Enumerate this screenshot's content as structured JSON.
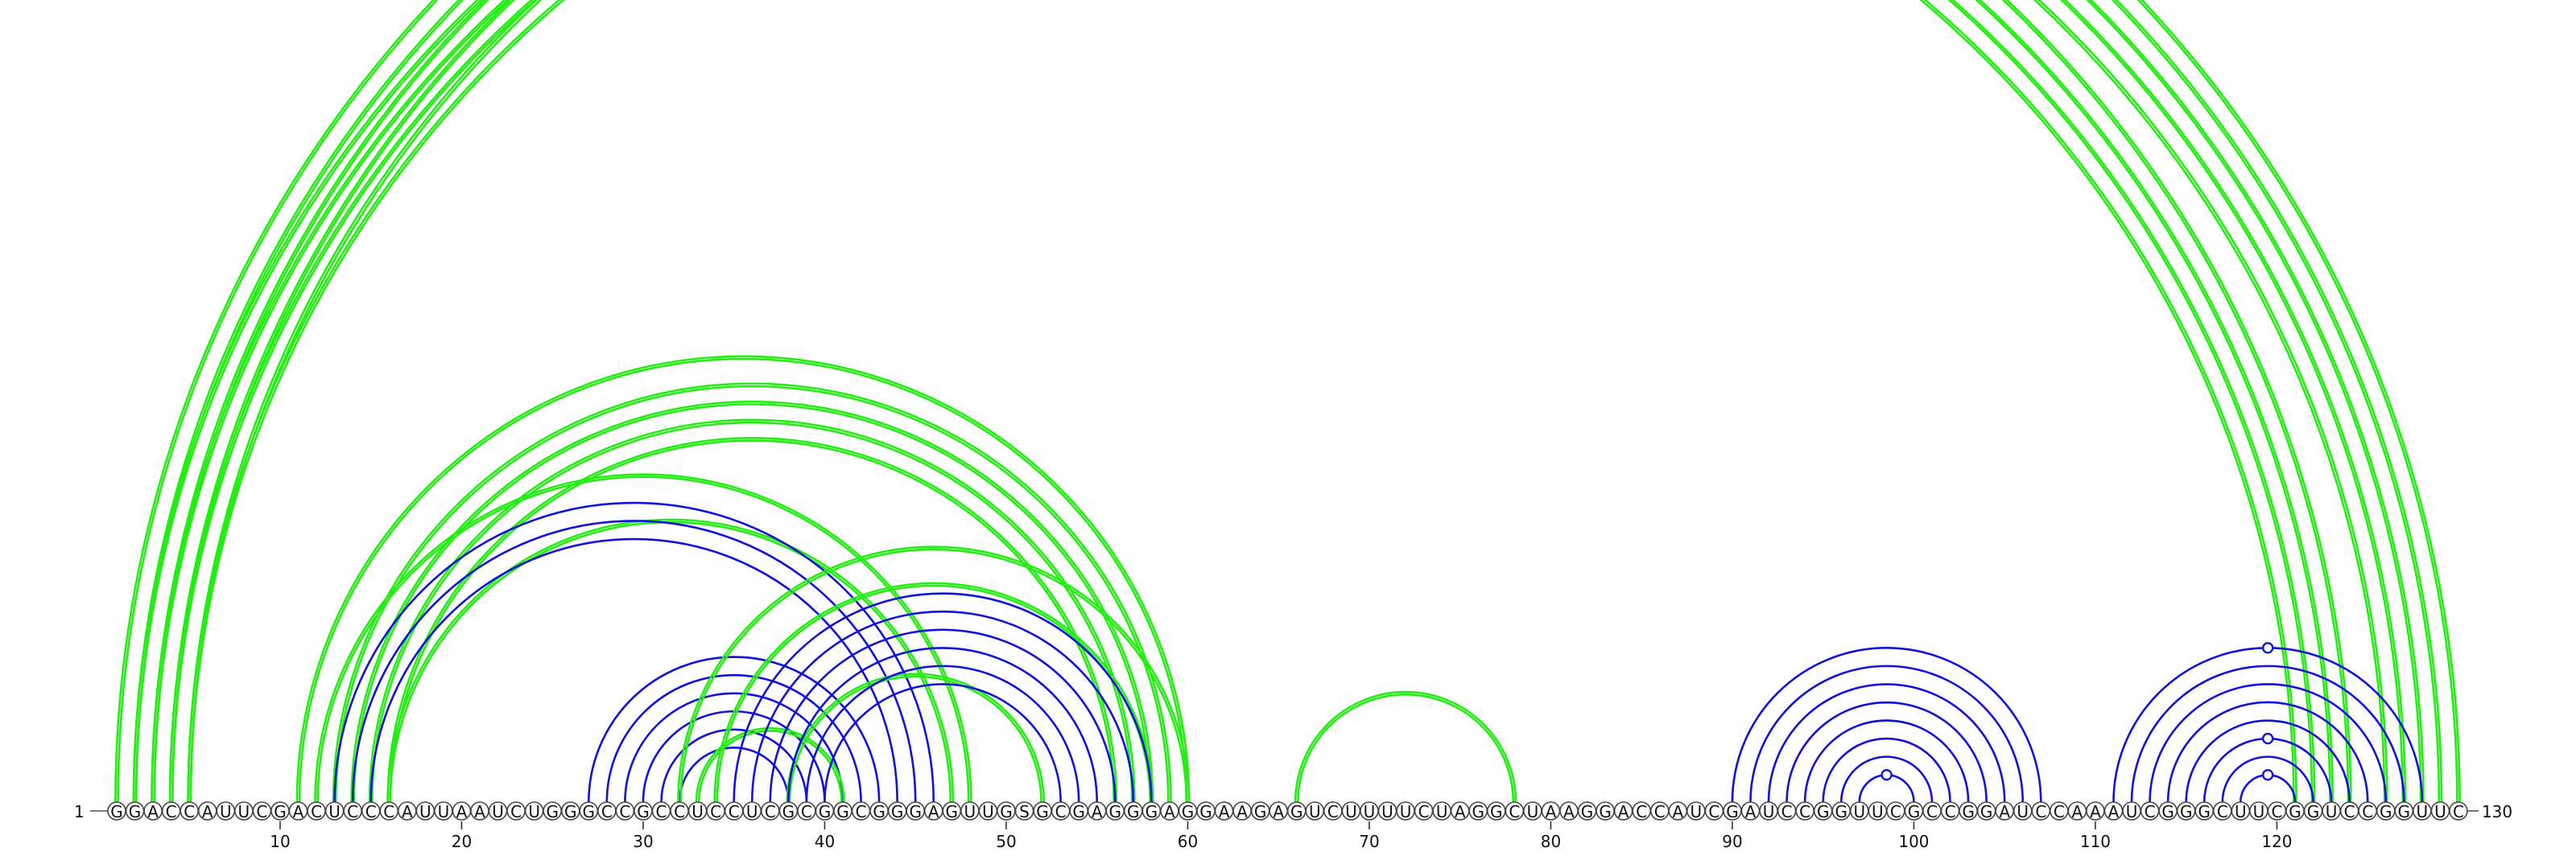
{
  "diagram": {
    "type": "rna-arc-diagram",
    "sequence": "GGACCAUUCGACUCCCAUUAAUCUGGGCCGCCUCCUCGCGGCGGGAGUUGSGCGAGGGAGGAAGAGUCUUUUCUAGGCUAAGGACCAUCGAUCCGGUUCGCCGGAUCCAAAUCGGGCUUCGGUCCGGUUC",
    "start_label": "1",
    "end_label": "130",
    "ticks": [
      "10",
      "20",
      "30",
      "40",
      "50",
      "60",
      "70",
      "80",
      "90",
      "100",
      "110",
      "120"
    ],
    "colors": {
      "green": "#22ee11",
      "blue": "#1111dd"
    },
    "arcs": [
      {
        "i": 1,
        "j": 130,
        "color": "green",
        "double": true
      },
      {
        "i": 2,
        "j": 129,
        "color": "green",
        "double": true
      },
      {
        "i": 3,
        "j": 128,
        "color": "green",
        "double": true
      },
      {
        "i": 4,
        "j": 127,
        "color": "green",
        "double": true
      },
      {
        "i": 5,
        "j": 126,
        "color": "green",
        "double": true
      },
      {
        "i": 2,
        "j": 124,
        "color": "green",
        "double": true
      },
      {
        "i": 3,
        "j": 123,
        "color": "green",
        "double": true
      },
      {
        "i": 4,
        "j": 122,
        "color": "green",
        "double": true
      },
      {
        "i": 5,
        "j": 121,
        "color": "green",
        "double": true
      },
      {
        "i": 11,
        "j": 60,
        "color": "green",
        "double": true
      },
      {
        "i": 13,
        "j": 59,
        "color": "green",
        "double": true
      },
      {
        "i": 14,
        "j": 58,
        "color": "green",
        "double": true
      },
      {
        "i": 15,
        "j": 57,
        "color": "green",
        "double": true
      },
      {
        "i": 16,
        "j": 56,
        "color": "green",
        "double": true
      },
      {
        "i": 12,
        "j": 48,
        "color": "green",
        "double": true
      },
      {
        "i": 16,
        "j": 47,
        "color": "green",
        "double": true
      },
      {
        "i": 13,
        "j": 46,
        "color": "blue",
        "double": false
      },
      {
        "i": 14,
        "j": 45,
        "color": "blue",
        "double": false
      },
      {
        "i": 15,
        "j": 44,
        "color": "blue",
        "double": false
      },
      {
        "i": 27,
        "j": 43,
        "color": "blue",
        "double": false
      },
      {
        "i": 28,
        "j": 42,
        "color": "blue",
        "double": false
      },
      {
        "i": 29,
        "j": 41,
        "color": "blue",
        "double": false
      },
      {
        "i": 30,
        "j": 40,
        "color": "blue",
        "double": false
      },
      {
        "i": 31,
        "j": 39,
        "color": "blue",
        "double": false
      },
      {
        "i": 32,
        "j": 38,
        "color": "blue",
        "double": false
      },
      {
        "i": 32,
        "j": 60,
        "color": "green",
        "double": true
      },
      {
        "i": 34,
        "j": 58,
        "color": "green",
        "double": true
      },
      {
        "i": 33,
        "j": 41,
        "color": "green",
        "double": true
      },
      {
        "i": 38,
        "j": 52,
        "color": "green",
        "double": true
      },
      {
        "i": 35,
        "j": 58,
        "color": "blue",
        "double": false
      },
      {
        "i": 36,
        "j": 57,
        "color": "blue",
        "double": false
      },
      {
        "i": 37,
        "j": 56,
        "color": "blue",
        "double": false
      },
      {
        "i": 38,
        "j": 55,
        "color": "blue",
        "double": false
      },
      {
        "i": 39,
        "j": 54,
        "color": "blue",
        "double": false
      },
      {
        "i": 40,
        "j": 53,
        "color": "blue",
        "double": false
      },
      {
        "i": 66,
        "j": 78,
        "color": "green",
        "double": true
      },
      {
        "i": 90,
        "j": 107,
        "color": "blue",
        "double": false
      },
      {
        "i": 91,
        "j": 106,
        "color": "blue",
        "double": false
      },
      {
        "i": 92,
        "j": 105,
        "color": "blue",
        "double": false
      },
      {
        "i": 93,
        "j": 104,
        "color": "blue",
        "double": false
      },
      {
        "i": 94,
        "j": 103,
        "color": "blue",
        "double": false
      },
      {
        "i": 95,
        "j": 102,
        "color": "blue",
        "double": false
      },
      {
        "i": 96,
        "j": 101,
        "color": "blue",
        "double": false
      },
      {
        "i": 97,
        "j": 100,
        "color": "blue",
        "double": false
      },
      {
        "i": 111,
        "j": 128,
        "color": "blue",
        "double": false
      },
      {
        "i": 112,
        "j": 127,
        "color": "blue",
        "double": false
      },
      {
        "i": 113,
        "j": 126,
        "color": "blue",
        "double": false
      },
      {
        "i": 114,
        "j": 125,
        "color": "blue",
        "double": false
      },
      {
        "i": 115,
        "j": 124,
        "color": "blue",
        "double": false
      },
      {
        "i": 116,
        "j": 123,
        "color": "blue",
        "double": false
      },
      {
        "i": 117,
        "j": 122,
        "color": "blue",
        "double": false
      },
      {
        "i": 118,
        "j": 121,
        "color": "blue",
        "double": false
      }
    ],
    "markers": [
      {
        "i": 1,
        "j": 130,
        "color": "green"
      },
      {
        "i": 97,
        "j": 100,
        "color": "blue"
      },
      {
        "i": 116,
        "j": 123,
        "color": "blue"
      },
      {
        "i": 118,
        "j": 121,
        "color": "blue"
      },
      {
        "i": 111,
        "j": 128,
        "color": "blue"
      }
    ]
  }
}
